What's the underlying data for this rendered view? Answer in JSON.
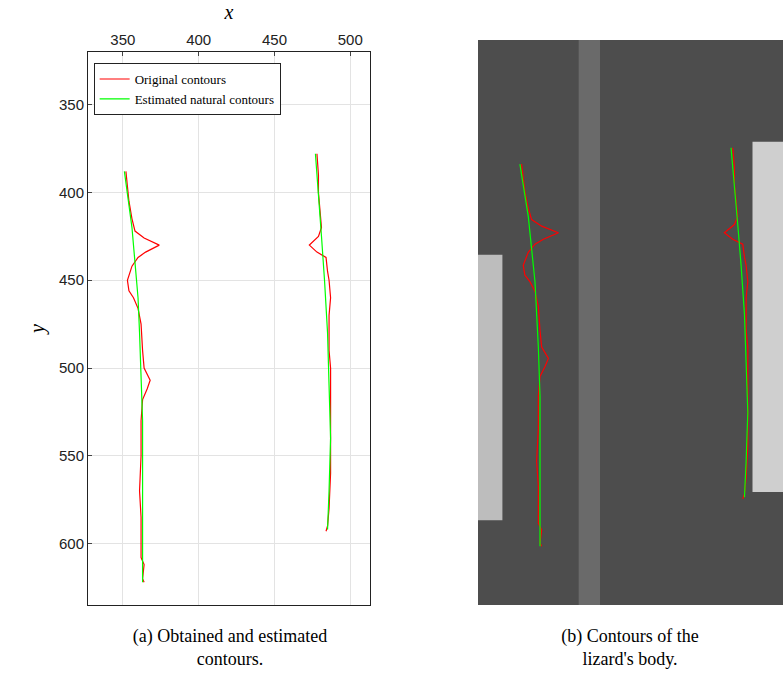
{
  "chart_data": [
    {
      "type": "line",
      "caption": "(a) Obtained and estimated contours.",
      "x_label": "x",
      "y_label": "y",
      "xlim": [
        327,
        513
      ],
      "xticks": [
        350,
        400,
        450,
        500
      ],
      "ylim": [
        635,
        320
      ],
      "yticks": [
        350,
        400,
        450,
        500,
        550,
        600
      ],
      "grid": true,
      "legend": "top left",
      "series": [
        {
          "name": "Original contours",
          "color": "#ff0000",
          "segments": [
            {
              "x": [
                352,
                353,
                354,
                356,
                358,
                364,
                374,
                365,
                360,
                356,
                353,
                354,
                357,
                360,
                362,
                363,
                364,
                368,
                366,
                363,
                362,
                362,
                361,
                362,
                362,
                362,
                364,
                363,
                364
              ],
              "y": [
                388,
                395,
                405,
                415,
                422,
                426,
                430,
                434,
                437,
                442,
                450,
                456,
                460,
                466,
                475,
                490,
                500,
                507,
                512,
                518,
                530,
                550,
                570,
                585,
                600,
                608,
                612,
                620,
                622
              ]
            },
            {
              "x": [
                478,
                479,
                479,
                480,
                481,
                479,
                473,
                478,
                484,
                485,
                486,
                487,
                486,
                486,
                486,
                487,
                487,
                487,
                487,
                486,
                485,
                484
              ],
              "y": [
                378,
                390,
                400,
                410,
                420,
                425,
                430,
                434,
                437,
                445,
                450,
                460,
                470,
                480,
                490,
                500,
                520,
                540,
                560,
                580,
                590,
                593
              ]
            }
          ]
        },
        {
          "name": "Estimated natural contours",
          "color": "#00ff00",
          "segments": [
            {
              "x": [
                351,
                353,
                356,
                358,
                360,
                361,
                362,
                363,
                363,
                363,
                363
              ],
              "y": [
                388,
                400,
                420,
                440,
                460,
                480,
                500,
                530,
                560,
                590,
                622
              ]
            },
            {
              "x": [
                477,
                479,
                481,
                483,
                485,
                486,
                487,
                486,
                485
              ],
              "y": [
                378,
                400,
                425,
                450,
                480,
                510,
                540,
                570,
                592
              ]
            }
          ]
        }
      ]
    },
    {
      "type": "line",
      "caption": "(b) Contours of the lizard's body.",
      "xlim": [
        326,
        508
      ],
      "ylim": [
        658,
        312
      ],
      "grid": false,
      "tick_labels": false,
      "series": [
        {
          "color": "#ff0000",
          "segments": [
            {
              "x": [
                352,
                353,
                354,
                356,
                358,
                364,
                374,
                365,
                360,
                356,
                353,
                354,
                357,
                360,
                362,
                363,
                364,
                368,
                366,
                363,
                362,
                362,
                361,
                362,
                362,
                362,
                364,
                363,
                364
              ],
              "y": [
                388,
                395,
                405,
                415,
                422,
                426,
                430,
                434,
                437,
                442,
                450,
                456,
                460,
                466,
                475,
                490,
                500,
                507,
                512,
                518,
                530,
                550,
                570,
                585,
                600,
                608,
                612,
                620,
                622
              ]
            },
            {
              "x": [
                478,
                479,
                479,
                480,
                481,
                479,
                473,
                478,
                484,
                485,
                486,
                487,
                486,
                486,
                486,
                487,
                487,
                487,
                487,
                486,
                485,
                484
              ],
              "y": [
                378,
                390,
                400,
                410,
                420,
                425,
                430,
                434,
                437,
                445,
                450,
                460,
                470,
                480,
                490,
                500,
                520,
                540,
                560,
                580,
                590,
                593
              ]
            }
          ]
        },
        {
          "color": "#00ff00",
          "segments": [
            {
              "x": [
                351,
                353,
                356,
                358,
                360,
                361,
                362,
                363,
                363,
                363,
                363
              ],
              "y": [
                388,
                400,
                420,
                440,
                460,
                480,
                500,
                530,
                560,
                590,
                622
              ]
            },
            {
              "x": [
                477,
                479,
                481,
                483,
                485,
                486,
                487,
                486,
                485
              ],
              "y": [
                378,
                400,
                425,
                450,
                480,
                510,
                540,
                570,
                592
              ]
            }
          ]
        }
      ]
    }
  ]
}
